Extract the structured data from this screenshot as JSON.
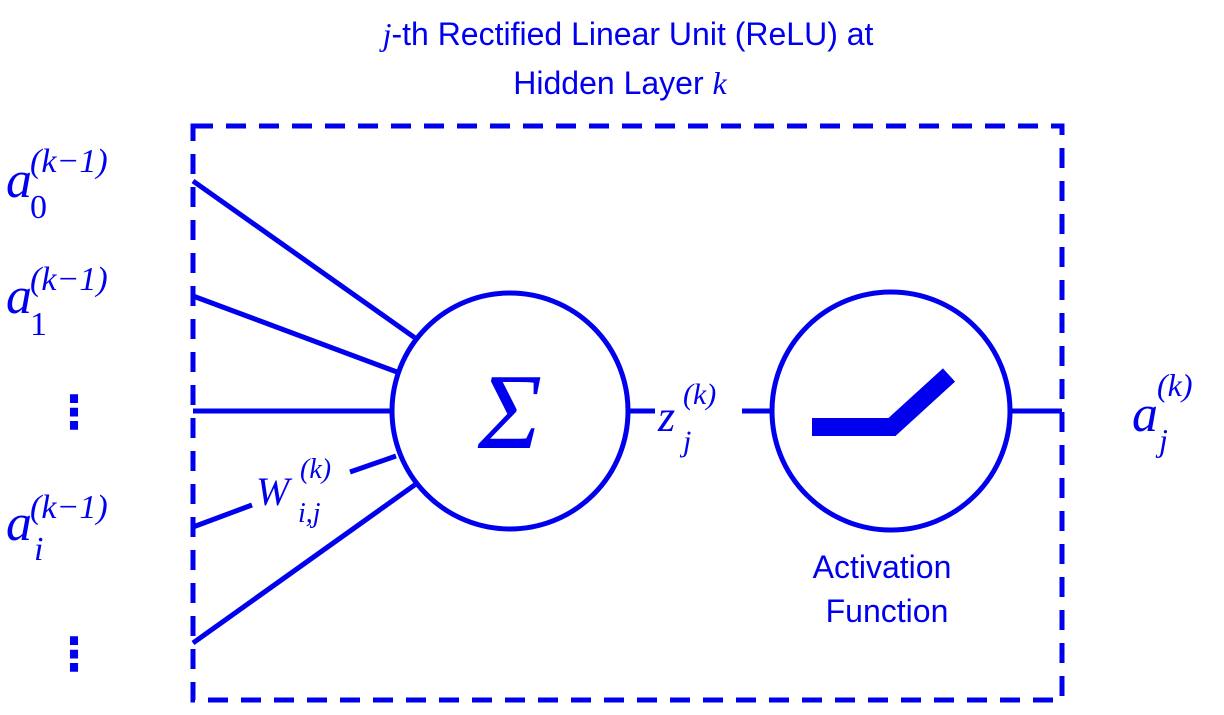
{
  "title": {
    "line1_var": "j",
    "line1_rest": "-th Rectified Linear Unit (ReLU)  at",
    "line2_text": "Hidden Layer ",
    "line2_var": "k"
  },
  "inputs": {
    "a0": {
      "base": "a",
      "sub": "0",
      "sup": "(k−1)"
    },
    "a1": {
      "base": "a",
      "sub": "1",
      "sup": "(k−1)"
    },
    "ai": {
      "base": "a",
      "sub": "i",
      "sup": "(k−1)"
    },
    "ellipsis": "⋮"
  },
  "weight": {
    "base": "W",
    "sub": "i,j",
    "sup": "(k)"
  },
  "summation": {
    "symbol": "Σ"
  },
  "preactivation": {
    "base": "z",
    "sub": "j",
    "sup": "(k)"
  },
  "activation": {
    "label_line1": "Activation",
    "label_line2": "Function"
  },
  "output": {
    "base": "a",
    "sub": "j",
    "sup": "(k)"
  },
  "colors": {
    "primary": "#0000ee",
    "background": "#ffffff"
  }
}
